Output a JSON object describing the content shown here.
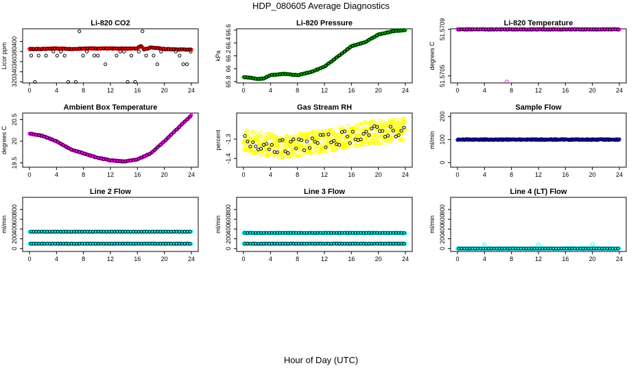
{
  "title": "HDP_080605  Average Diagnostics",
  "xlabel": "Hour of Day (UTC)",
  "chart_data": [
    {
      "type": "scatter",
      "title": "Li-820 CO2",
      "ylabel": "Licor ppm",
      "xlim": [
        0,
        24
      ],
      "xticks": [
        0,
        4,
        8,
        12,
        16,
        20,
        24
      ],
      "ylim": [
        318,
        425
      ],
      "yticks": [
        320,
        340,
        360,
        380,
        400
      ],
      "series": [
        {
          "name": "raw",
          "color": "#000000",
          "style": "scatter-sparse",
          "levels": [
            320,
            355,
            372,
            380,
            420
          ]
        },
        {
          "name": "average",
          "color": "#ff0000",
          "style": "dense-line",
          "points": [
            [
              0,
              385
            ],
            [
              2,
              385
            ],
            [
              4,
              386
            ],
            [
              6,
              385
            ],
            [
              8,
              386
            ],
            [
              10,
              386
            ],
            [
              12,
              386
            ],
            [
              14,
              386
            ],
            [
              16,
              386
            ],
            [
              16.5,
              392
            ],
            [
              17,
              384
            ],
            [
              18,
              388
            ],
            [
              20,
              385
            ],
            [
              22,
              384
            ],
            [
              24,
              384
            ]
          ]
        }
      ]
    },
    {
      "type": "scatter",
      "title": "Li-820 Pressure",
      "ylabel": "kPa",
      "xlim": [
        0,
        24
      ],
      "xticks": [
        0,
        4,
        8,
        12,
        16,
        20,
        24
      ],
      "ylim": [
        65.78,
        66.62
      ],
      "yticks": [
        65.8,
        66.0,
        66.2,
        66.4,
        66.6
      ],
      "series": [
        {
          "name": "pressure",
          "color": "#00aa00",
          "style": "dense-line",
          "points": [
            [
              0,
              65.87
            ],
            [
              1,
              65.86
            ],
            [
              2,
              65.84
            ],
            [
              3,
              65.85
            ],
            [
              4,
              65.9
            ],
            [
              6,
              65.92
            ],
            [
              8,
              65.9
            ],
            [
              10,
              65.95
            ],
            [
              12,
              66.03
            ],
            [
              14,
              66.19
            ],
            [
              16,
              66.35
            ],
            [
              18,
              66.41
            ],
            [
              20,
              66.53
            ],
            [
              22,
              66.58
            ],
            [
              24,
              66.6
            ]
          ]
        }
      ]
    },
    {
      "type": "scatter",
      "title": "Li-820 Temperature",
      "ylabel": "degrees C",
      "xlim": [
        0,
        24
      ],
      "xticks": [
        0,
        4,
        8,
        12,
        16,
        20,
        24
      ],
      "ylim": [
        51.57044,
        51.570905
      ],
      "yticks": [
        51.5705,
        51.5709
      ],
      "series": [
        {
          "name": "temperature",
          "color": "#ff00ff",
          "style": "dense-line",
          "points": [
            [
              0,
              51.5709
            ],
            [
              24,
              51.5709
            ]
          ]
        },
        {
          "name": "outlier",
          "color": "#ff00ff",
          "style": "single",
          "points": [
            [
              7.3,
              51.57045
            ]
          ]
        }
      ]
    },
    {
      "type": "scatter",
      "title": "Ambient Box Temperature",
      "ylabel": "degrees C",
      "xlim": [
        0,
        24
      ],
      "xticks": [
        0,
        4,
        8,
        12,
        16,
        20,
        24
      ],
      "ylim": [
        19.4,
        20.65
      ],
      "yticks": [
        19.5,
        20.0,
        20.5
      ],
      "series": [
        {
          "name": "temperature",
          "color": "#ff00ff",
          "style": "dense-line",
          "points": [
            [
              0,
              20.18
            ],
            [
              2,
              20.12
            ],
            [
              4,
              20.0
            ],
            [
              6,
              19.82
            ],
            [
              8,
              19.72
            ],
            [
              10,
              19.62
            ],
            [
              12,
              19.56
            ],
            [
              14,
              19.53
            ],
            [
              16,
              19.58
            ],
            [
              18,
              19.72
            ],
            [
              20,
              20.0
            ],
            [
              22,
              20.3
            ],
            [
              24,
              20.6
            ]
          ]
        }
      ]
    },
    {
      "type": "scatter",
      "title": "Gas Stream RH",
      "ylabel": "percent",
      "xlim": [
        0,
        24
      ],
      "xticks": [
        0,
        4,
        8,
        12,
        16,
        20,
        24
      ],
      "ylim": [
        -1.445,
        -1.165
      ],
      "yticks": [
        -1.4,
        -1.3
      ],
      "series": [
        {
          "name": "rh",
          "color": "#ffff00",
          "style": "noise",
          "center": [
            [
              0,
              -1.31
            ],
            [
              6,
              -1.34
            ],
            [
              12,
              -1.31
            ],
            [
              18,
              -1.27
            ],
            [
              24,
              -1.25
            ]
          ],
          "spread": 0.06
        }
      ]
    },
    {
      "type": "scatter",
      "title": "Sample Flow",
      "ylabel": "ml/min",
      "xlim": [
        0,
        24
      ],
      "xticks": [
        0,
        4,
        8,
        12,
        16,
        20,
        24
      ],
      "ylim": [
        -20,
        215
      ],
      "yticks": [
        0,
        100,
        200
      ],
      "series": [
        {
          "name": "flow",
          "color": "#0000ff",
          "style": "dense-line",
          "points": [
            [
              0,
              100
            ],
            [
              24,
              100
            ]
          ]
        }
      ]
    },
    {
      "type": "scatter",
      "title": "Line 2 Flow",
      "ylabel": "ml/min",
      "xlim": [
        0,
        24
      ],
      "xticks": [
        0,
        4,
        8,
        12,
        16,
        20,
        24
      ],
      "ylim": [
        -60,
        1050
      ],
      "yticks": [
        0,
        200,
        400,
        600,
        800
      ],
      "series": [
        {
          "name": "flow-high",
          "color": "#00ffff",
          "style": "dense-line",
          "points": [
            [
              0,
              345
            ],
            [
              24,
              345
            ]
          ]
        },
        {
          "name": "flow-low",
          "color": "#00ffff",
          "style": "dense-line",
          "points": [
            [
              0,
              100
            ],
            [
              24,
              100
            ]
          ]
        }
      ]
    },
    {
      "type": "scatter",
      "title": "Line 3 Flow",
      "ylabel": "ml/min",
      "xlim": [
        0,
        24
      ],
      "xticks": [
        0,
        4,
        8,
        12,
        16,
        20,
        24
      ],
      "ylim": [
        -60,
        1050
      ],
      "yticks": [
        0,
        200,
        400,
        600,
        800
      ],
      "series": [
        {
          "name": "flow-high",
          "color": "#00ffff",
          "style": "dense-line",
          "points": [
            [
              0,
              320
            ],
            [
              24,
              320
            ]
          ]
        },
        {
          "name": "flow-low",
          "color": "#00ffff",
          "style": "dense-line",
          "points": [
            [
              0,
              100
            ],
            [
              24,
              100
            ]
          ]
        }
      ]
    },
    {
      "type": "scatter",
      "title": "Line 4 (LT) Flow",
      "ylabel": "ml/min",
      "xlim": [
        0,
        24
      ],
      "xticks": [
        0,
        4,
        8,
        12,
        16,
        20,
        24
      ],
      "ylim": [
        -60,
        1050
      ],
      "yticks": [
        0,
        200,
        400,
        600,
        800
      ],
      "series": [
        {
          "name": "flow",
          "color": "#00ffff",
          "style": "dense-line",
          "points": [
            [
              0,
              0
            ],
            [
              24,
              0
            ]
          ]
        },
        {
          "name": "spikes",
          "color": "#00ffff",
          "style": "single",
          "points": [
            [
              4,
              85
            ],
            [
              12,
              85
            ],
            [
              20,
              85
            ]
          ]
        }
      ]
    }
  ]
}
